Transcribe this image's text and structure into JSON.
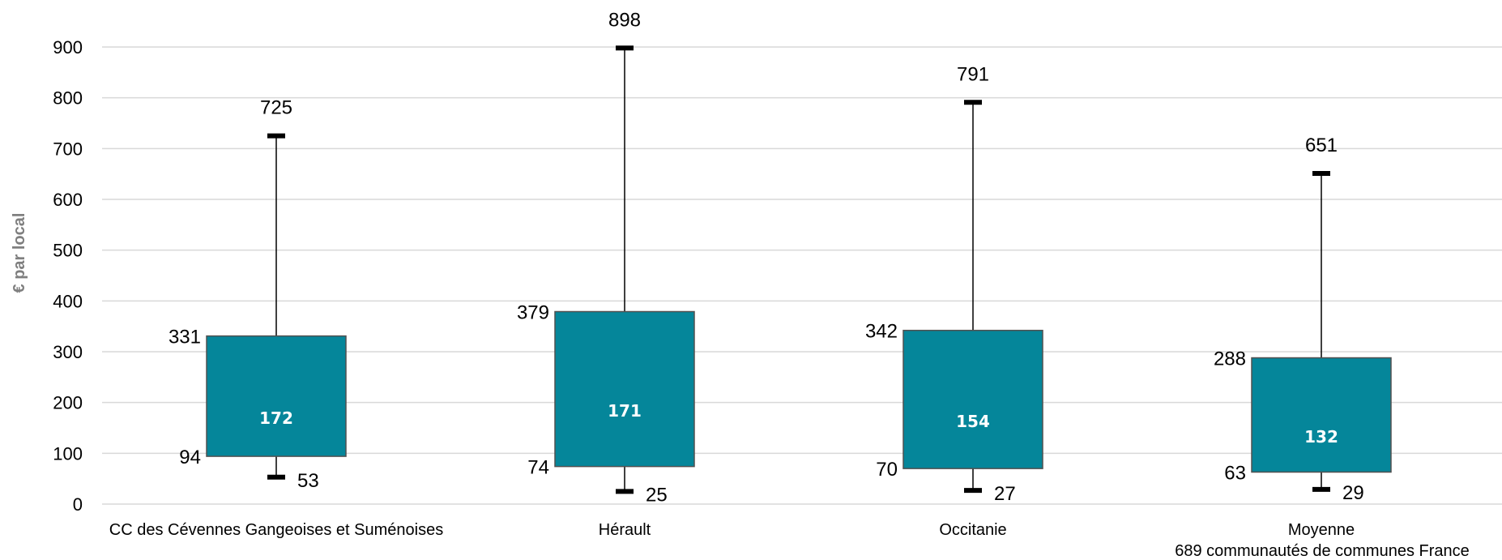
{
  "chart_data": {
    "type": "box",
    "ylabel": "€ par local",
    "ylim": [
      0,
      900
    ],
    "yticks": [
      0,
      100,
      200,
      300,
      400,
      500,
      600,
      700,
      800,
      900
    ],
    "grid": true,
    "colors": {
      "box": "#05869a",
      "box_edge": "#505050",
      "grid": "#d9d9d9",
      "whisker": "#000000"
    },
    "categories": [
      {
        "label": "CC des Cévennes Gangeoises et Suménoises",
        "label2": ""
      },
      {
        "label": "Hérault",
        "label2": ""
      },
      {
        "label": "Occitanie",
        "label2": ""
      },
      {
        "label": "Moyenne",
        "label2": "689 communautés de communes France"
      }
    ],
    "boxes": [
      {
        "min": 53,
        "q1": 94,
        "median": 172,
        "q3": 331,
        "max": 725
      },
      {
        "min": 25,
        "q1": 74,
        "median": 171,
        "q3": 379,
        "max": 898
      },
      {
        "min": 27,
        "q1": 70,
        "median": 154,
        "q3": 342,
        "max": 791
      },
      {
        "min": 29,
        "q1": 63,
        "median": 132,
        "q3": 288,
        "max": 651
      }
    ]
  }
}
